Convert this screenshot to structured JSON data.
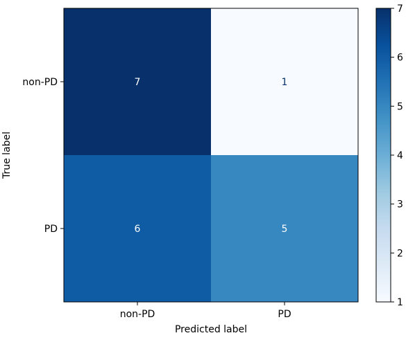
{
  "chart_data": {
    "type": "heatmap",
    "title": "",
    "xlabel": "Predicted label",
    "ylabel": "True label",
    "x_categories": [
      "non-PD",
      "PD"
    ],
    "y_categories": [
      "non-PD",
      "PD"
    ],
    "values": [
      [
        7,
        1
      ],
      [
        6,
        5
      ]
    ],
    "colormap": "Blues",
    "colorbar": {
      "min": 1,
      "max": 7,
      "ticks": [
        "1",
        "2",
        "3",
        "4",
        "5",
        "6",
        "7"
      ]
    },
    "grid": false
  },
  "colors": {
    "text_on_dark": "#ffffff",
    "text_on_light": "#08306b",
    "axis": "#000000"
  }
}
